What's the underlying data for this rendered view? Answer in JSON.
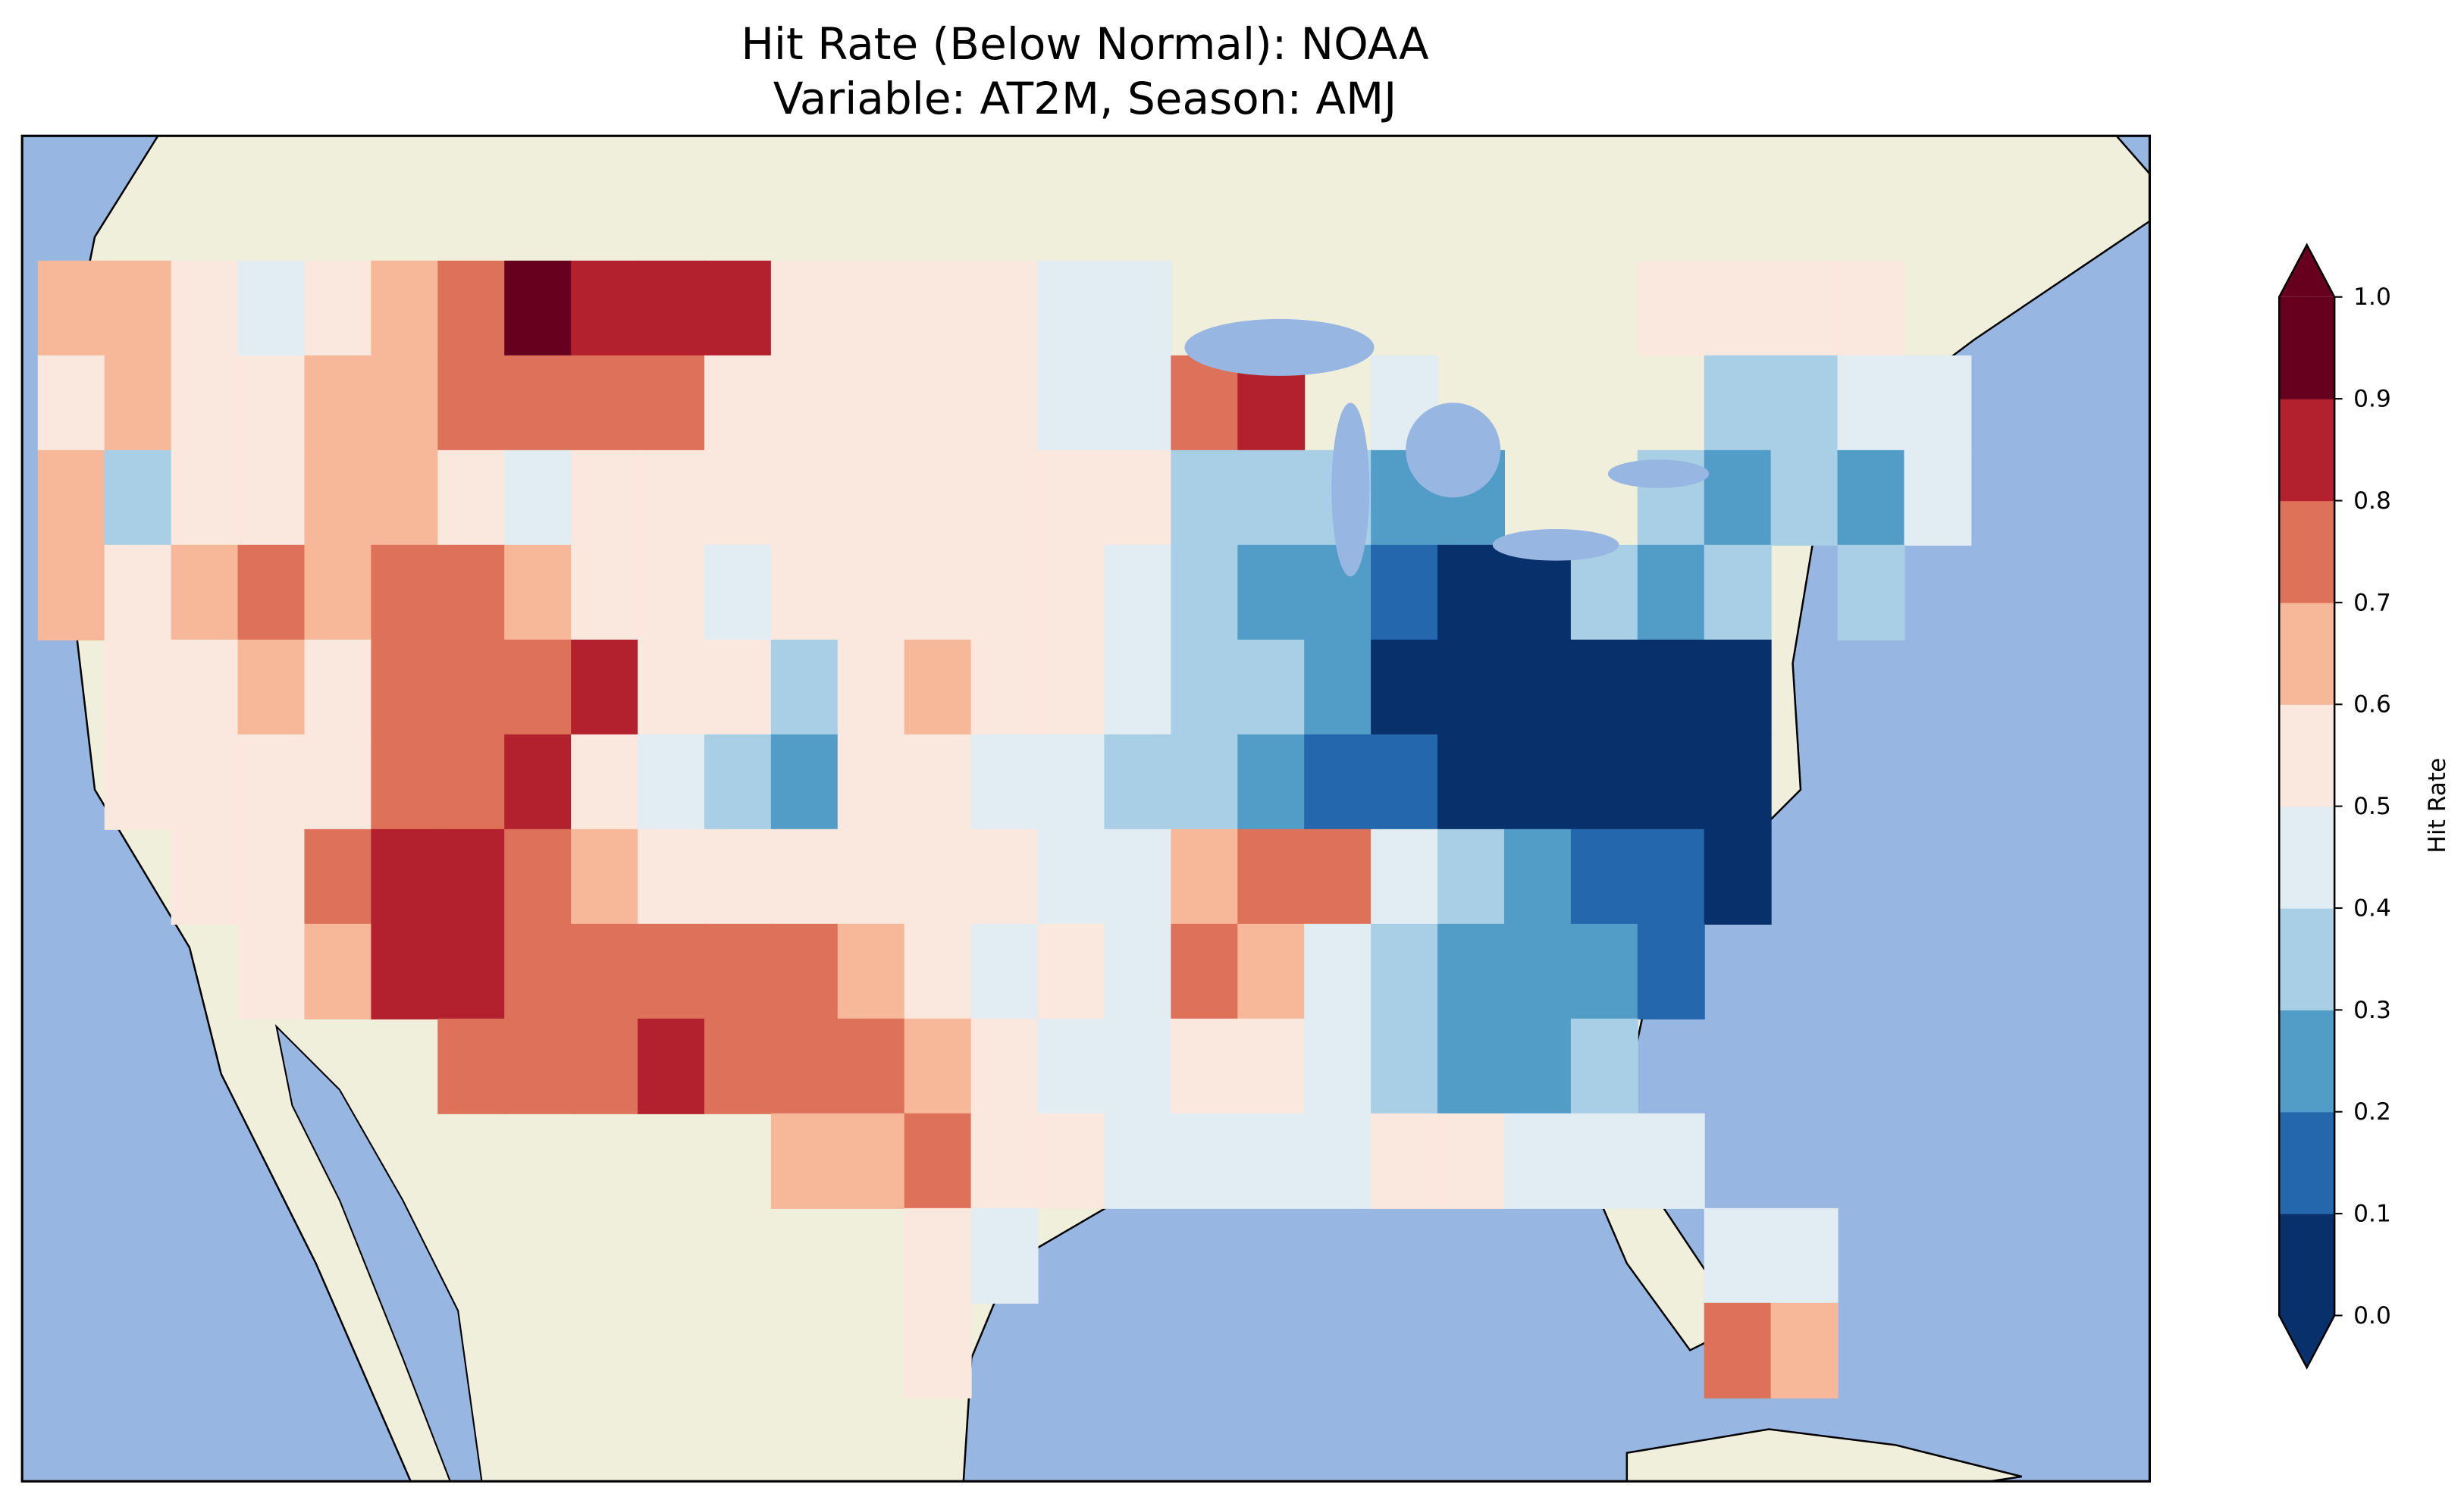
{
  "chart_data": {
    "type": "heatmap",
    "title_line1": "Hit Rate (Below Normal): NOAA",
    "title_line2": "Variable: AT2M, Season: AMJ",
    "colorbar": {
      "label": "Hit Rate",
      "ticks": [
        "0.0",
        "0.1",
        "0.2",
        "0.3",
        "0.4",
        "0.5",
        "0.6",
        "0.7",
        "0.8",
        "0.9",
        "1.0"
      ],
      "colors": [
        "#08306b",
        "#2467ad",
        "#529dc8",
        "#a8cfe5",
        "#e1ecf3",
        "#fae7dd",
        "#f6b899",
        "#dd7159",
        "#b2212d",
        "#67001f"
      ],
      "extend": "both"
    },
    "grid": {
      "lon_start": -124,
      "lat_start": 48,
      "step": 2,
      "note_key": "digit = bin index (0 = 0.0-0.1 ... 9 = 0.9-1.0), . = no data",
      "rows": [
        "66545679888555544.......5555.",
        "5655667777555554478.4....3344.",
        "6355665455555555533322..32324.",
        "65676776554555554322100323.3..",
        ".5565777855356554332000000....",
        ".5555778543255443321100000....",
        "..557887655555544677432110...",
        "...5688777776545476432221.....",
        "......777877765445543223......",
        "...........66755444455444.....",
        ".............54..........44...",
        ".............5...........76..."
      ]
    },
    "colors": {
      "ocean": "#97b6e1",
      "land": "#efefdb"
    }
  }
}
